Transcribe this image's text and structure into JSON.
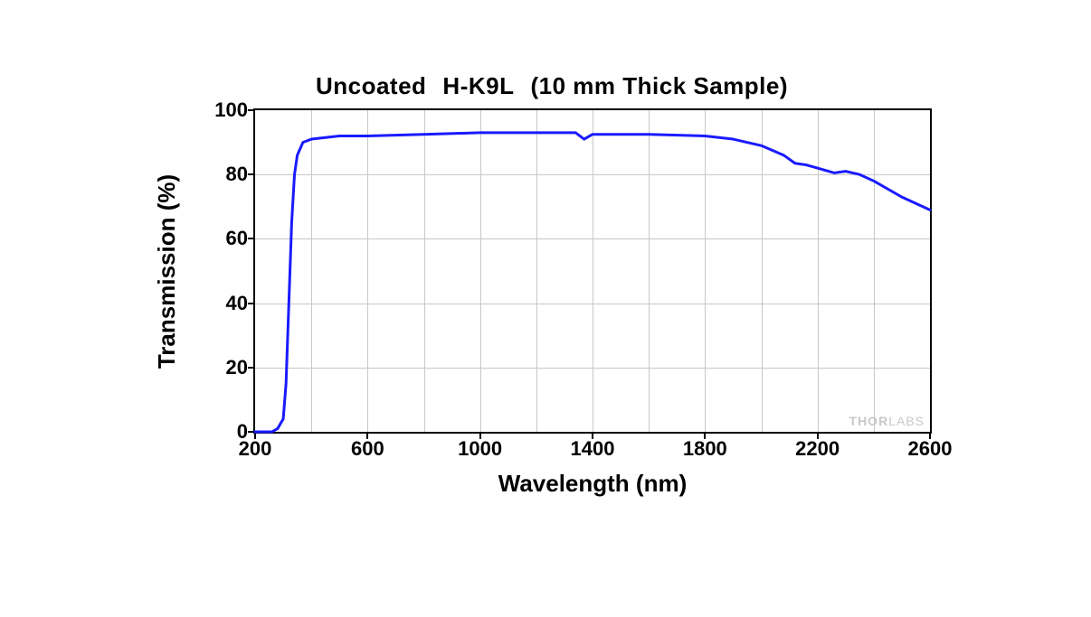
{
  "chart": {
    "type": "line",
    "title_parts": [
      "Uncoated",
      "H-K9L",
      "(10 mm Thick Sample)"
    ],
    "title_fontsize": 26,
    "title_fontweight": 700,
    "xlabel": "Wavelength (nm)",
    "ylabel": "Transmission (%)",
    "label_fontsize": 26,
    "tick_fontsize": 22,
    "xlim": [
      200,
      2600
    ],
    "ylim": [
      0,
      100
    ],
    "xticks": [
      200,
      600,
      1000,
      1400,
      1800,
      2200,
      2600
    ],
    "yticks": [
      0,
      20,
      40,
      60,
      80,
      100
    ],
    "x_minor_step": 200,
    "y_minor_step": 20,
    "background_color": "#ffffff",
    "grid_color": "#c8c8c8",
    "axis_color": "#000000",
    "axis_width": 2.5,
    "line_color": "#1a1aff",
    "line_width": 3,
    "watermark": "THORLABS",
    "watermark_color": "#c8c8c8",
    "series": [
      {
        "x": 200,
        "y": 0
      },
      {
        "x": 260,
        "y": 0
      },
      {
        "x": 280,
        "y": 1
      },
      {
        "x": 300,
        "y": 4
      },
      {
        "x": 310,
        "y": 15
      },
      {
        "x": 320,
        "y": 40
      },
      {
        "x": 330,
        "y": 65
      },
      {
        "x": 340,
        "y": 80
      },
      {
        "x": 350,
        "y": 86
      },
      {
        "x": 370,
        "y": 90
      },
      {
        "x": 400,
        "y": 91
      },
      {
        "x": 500,
        "y": 92
      },
      {
        "x": 600,
        "y": 92
      },
      {
        "x": 800,
        "y": 92.5
      },
      {
        "x": 1000,
        "y": 93
      },
      {
        "x": 1200,
        "y": 93
      },
      {
        "x": 1340,
        "y": 93
      },
      {
        "x": 1370,
        "y": 91
      },
      {
        "x": 1400,
        "y": 92.5
      },
      {
        "x": 1600,
        "y": 92.5
      },
      {
        "x": 1800,
        "y": 92
      },
      {
        "x": 1900,
        "y": 91
      },
      {
        "x": 2000,
        "y": 89
      },
      {
        "x": 2080,
        "y": 86
      },
      {
        "x": 2120,
        "y": 83.5
      },
      {
        "x": 2160,
        "y": 83
      },
      {
        "x": 2200,
        "y": 82
      },
      {
        "x": 2260,
        "y": 80.5
      },
      {
        "x": 2300,
        "y": 81
      },
      {
        "x": 2350,
        "y": 80
      },
      {
        "x": 2400,
        "y": 78
      },
      {
        "x": 2500,
        "y": 73
      },
      {
        "x": 2600,
        "y": 69
      }
    ]
  }
}
